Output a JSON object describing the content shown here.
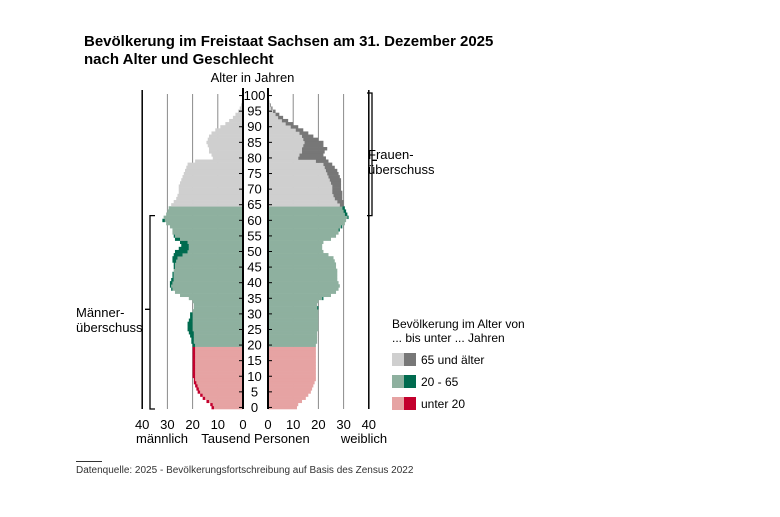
{
  "chart_data": {
    "type": "bar",
    "orientation": "horizontal-population-pyramid",
    "title_line1": "Bevölkerung im Freistaat Sachsen am 31. Dezember 2025",
    "title_line2": "nach Alter und Geschlecht",
    "ylabel": "Alter in Jahren",
    "xlabel": "Tausend Personen",
    "left_label": "männlich",
    "right_label": "weiblich",
    "x_ticks_left": [
      "40",
      "30",
      "20",
      "10",
      "0"
    ],
    "x_ticks_right": [
      "0",
      "10",
      "20",
      "30",
      "40"
    ],
    "xlim": [
      0,
      40
    ],
    "age_ticks": [
      "0",
      "5",
      "10",
      "15",
      "20",
      "25",
      "30",
      "35",
      "40",
      "45",
      "50",
      "55",
      "60",
      "65",
      "70",
      "75",
      "80",
      "85",
      "90",
      "95",
      "100"
    ],
    "ylim": [
      0,
      100
    ],
    "grid": "vertical",
    "annotation_women": [
      "Frauen-",
      "überschuss"
    ],
    "annotation_men": [
      "Männer-",
      "überschuss"
    ],
    "legend": {
      "title_line1": "Bevölkerung im Alter von",
      "title_line2": "... bis unter ... Jahren",
      "placement": "right",
      "items": [
        {
          "label": "65 und älter",
          "base_color": "#cfcfcf",
          "surplus_color": "#777777"
        },
        {
          "label": "20 - 65",
          "base_color": "#8eb09f",
          "surplus_color": "#006b4f"
        },
        {
          "label": "unter 20",
          "base_color": "#e6a3a3",
          "surplus_color": "#c3002d"
        }
      ]
    },
    "age_groups": [
      {
        "name": "unter 20",
        "from": 0,
        "to": 19
      },
      {
        "name": "20 - 65",
        "from": 20,
        "to": 64
      },
      {
        "name": "65 und älter",
        "from": 65,
        "to": 100
      }
    ],
    "ages": [
      0,
      1,
      2,
      3,
      4,
      5,
      6,
      7,
      8,
      9,
      10,
      11,
      12,
      13,
      14,
      15,
      16,
      17,
      18,
      19,
      20,
      21,
      22,
      23,
      24,
      25,
      26,
      27,
      28,
      29,
      30,
      31,
      32,
      33,
      34,
      35,
      36,
      37,
      38,
      39,
      40,
      41,
      42,
      43,
      44,
      45,
      46,
      47,
      48,
      49,
      50,
      51,
      52,
      53,
      54,
      55,
      56,
      57,
      58,
      59,
      60,
      61,
      62,
      63,
      64,
      65,
      66,
      67,
      68,
      69,
      70,
      71,
      72,
      73,
      74,
      75,
      76,
      77,
      78,
      79,
      80,
      81,
      82,
      83,
      84,
      85,
      86,
      87,
      88,
      89,
      90,
      91,
      92,
      93,
      94,
      95,
      96,
      97,
      98,
      99,
      100
    ],
    "series": [
      {
        "name": "männlich",
        "values": [
          12.5,
          13,
          14.5,
          16,
          17,
          18,
          18.5,
          19,
          19.5,
          19.5,
          20,
          20,
          20,
          20,
          20,
          20,
          20,
          20,
          20,
          20,
          20,
          20.5,
          20.5,
          21,
          21.5,
          22,
          22,
          22,
          21.5,
          21,
          21,
          20,
          19.5,
          19.5,
          20,
          21.5,
          25,
          27,
          28.5,
          29,
          29,
          28.5,
          28,
          28,
          27.5,
          27.5,
          27.5,
          28,
          28,
          27.5,
          27,
          25.5,
          24.5,
          25,
          27,
          27.5,
          28,
          28,
          29,
          30.5,
          32,
          31.5,
          30.5,
          30,
          29.5,
          28.5,
          27.5,
          26.5,
          26,
          25.5,
          25.5,
          25.5,
          25,
          24.5,
          24,
          23.5,
          23,
          22.5,
          22,
          19,
          12,
          12.5,
          13.5,
          13.5,
          14,
          14.5,
          14,
          13.5,
          12.5,
          11,
          9,
          7,
          5.5,
          4,
          3,
          2,
          1.3,
          0.8,
          0.5,
          0.3,
          0.1
        ]
      },
      {
        "name": "weiblich",
        "values": [
          11.5,
          12,
          13.5,
          15,
          16,
          17,
          17.5,
          18,
          18.5,
          19,
          19,
          19,
          19,
          19,
          19,
          19,
          19,
          19,
          19,
          19,
          19,
          19.5,
          19.5,
          19.5,
          19.5,
          20,
          20,
          20,
          20,
          20,
          20,
          20,
          20,
          19.5,
          20,
          22,
          25,
          27,
          28,
          28.5,
          28,
          27.5,
          27.5,
          27.5,
          27.5,
          27,
          27,
          26.5,
          26,
          24,
          22,
          21.5,
          21.5,
          22,
          25,
          27,
          28,
          28.5,
          29.5,
          30.5,
          31,
          32,
          31.5,
          31,
          30.5,
          30,
          30,
          29.5,
          29.5,
          29.5,
          29,
          29,
          29,
          29,
          28.5,
          28,
          27.5,
          26.5,
          25.5,
          24,
          23,
          22,
          22.5,
          23.5,
          22,
          22,
          20,
          18,
          16,
          14,
          12,
          10,
          8,
          6,
          4.5,
          3,
          1.8,
          1.1,
          0.6,
          0.3,
          0.1
        ]
      }
    ]
  },
  "footer": {
    "source": "Datenquelle: 2025 - Bevölkerungsfortschreibung auf Basis des Zensus 2022"
  }
}
